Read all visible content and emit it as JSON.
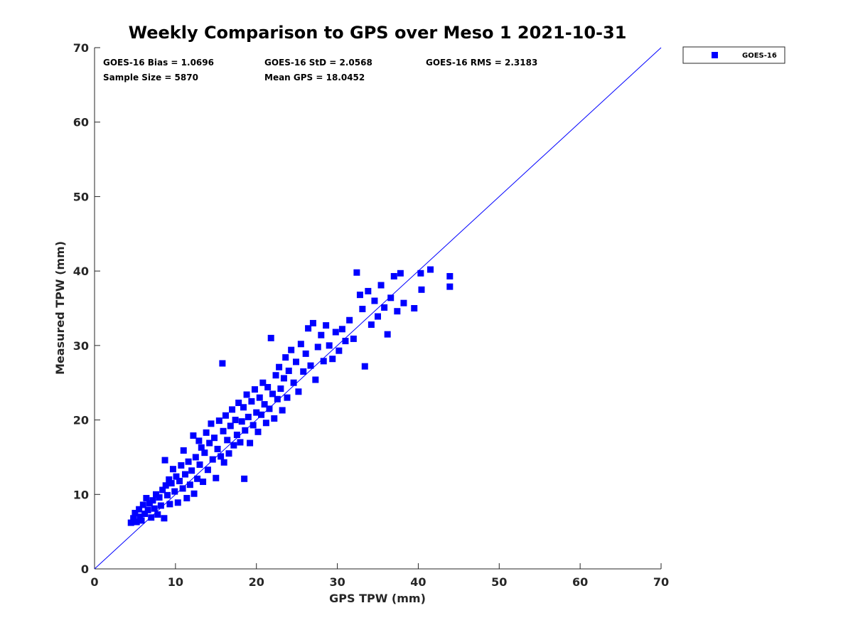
{
  "colors": {
    "series": "#0000ff",
    "axis": "#262626",
    "background": "#ffffff"
  },
  "stats": {
    "bias": "GOES-16 Bias = 1.0696",
    "std": "GOES-16 StD = 2.0568",
    "rms": "GOES-16 RMS = 2.3183",
    "sample_size": "Sample Size = 5870",
    "mean_gps": "Mean GPS = 18.0452"
  },
  "legend": {
    "label": "GOES-16",
    "placement": "top-right, outside plot area"
  },
  "chart_data": {
    "type": "scatter",
    "title": "Weekly Comparison to GPS over Meso 1 2021-10-31",
    "xlabel": "GPS TPW (mm)",
    "ylabel": "Measured TPW (mm)",
    "xlim": [
      0,
      70
    ],
    "ylim": [
      0,
      70
    ],
    "xticks": [
      0,
      10,
      20,
      30,
      40,
      50,
      60,
      70
    ],
    "yticks": [
      0,
      10,
      20,
      30,
      40,
      50,
      60,
      70
    ],
    "grid": false,
    "reference_line": {
      "name": "1:1 line",
      "from": [
        0,
        0
      ],
      "to": [
        70,
        70
      ]
    },
    "series": [
      {
        "name": "GOES-16",
        "marker": "square",
        "points": [
          [
            4.5,
            6.2
          ],
          [
            4.8,
            6.8
          ],
          [
            5.0,
            7.5
          ],
          [
            5.2,
            6.3
          ],
          [
            5.5,
            8.0
          ],
          [
            5.6,
            7.0
          ],
          [
            5.8,
            6.5
          ],
          [
            6.0,
            8.6
          ],
          [
            6.2,
            7.4
          ],
          [
            6.4,
            9.5
          ],
          [
            6.6,
            7.9
          ],
          [
            6.8,
            8.8
          ],
          [
            7.0,
            6.9
          ],
          [
            7.2,
            9.2
          ],
          [
            7.4,
            8.1
          ],
          [
            7.6,
            10.0
          ],
          [
            7.8,
            7.3
          ],
          [
            8.0,
            9.6
          ],
          [
            8.2,
            8.5
          ],
          [
            8.4,
            10.6
          ],
          [
            8.6,
            6.8
          ],
          [
            8.7,
            14.6
          ],
          [
            8.8,
            11.2
          ],
          [
            9.0,
            9.9
          ],
          [
            9.2,
            12.0
          ],
          [
            9.3,
            8.7
          ],
          [
            9.5,
            11.5
          ],
          [
            9.7,
            13.4
          ],
          [
            9.9,
            10.4
          ],
          [
            10.1,
            12.4
          ],
          [
            10.3,
            8.9
          ],
          [
            10.5,
            11.8
          ],
          [
            10.7,
            13.9
          ],
          [
            10.9,
            10.8
          ],
          [
            11.0,
            15.9
          ],
          [
            11.2,
            12.7
          ],
          [
            11.4,
            9.5
          ],
          [
            11.6,
            14.4
          ],
          [
            11.8,
            11.3
          ],
          [
            12.0,
            13.2
          ],
          [
            12.2,
            17.9
          ],
          [
            12.3,
            10.1
          ],
          [
            12.5,
            15.0
          ],
          [
            12.7,
            12.1
          ],
          [
            12.9,
            17.2
          ],
          [
            13.0,
            14.0
          ],
          [
            13.2,
            16.3
          ],
          [
            13.4,
            11.7
          ],
          [
            13.6,
            15.6
          ],
          [
            13.8,
            18.3
          ],
          [
            14.0,
            13.3
          ],
          [
            14.2,
            16.9
          ],
          [
            14.4,
            19.5
          ],
          [
            14.6,
            14.7
          ],
          [
            14.8,
            17.6
          ],
          [
            15.0,
            12.2
          ],
          [
            15.2,
            16.1
          ],
          [
            15.4,
            19.9
          ],
          [
            15.6,
            15.1
          ],
          [
            15.8,
            27.6
          ],
          [
            15.9,
            18.5
          ],
          [
            16.0,
            14.3
          ],
          [
            16.2,
            20.6
          ],
          [
            16.4,
            17.3
          ],
          [
            16.6,
            15.5
          ],
          [
            16.8,
            19.2
          ],
          [
            17.0,
            21.4
          ],
          [
            17.2,
            16.6
          ],
          [
            17.4,
            20.0
          ],
          [
            17.6,
            18.0
          ],
          [
            17.8,
            22.3
          ],
          [
            18.0,
            17.0
          ],
          [
            18.2,
            19.8
          ],
          [
            18.4,
            21.7
          ],
          [
            18.5,
            12.1
          ],
          [
            18.6,
            18.6
          ],
          [
            18.8,
            23.4
          ],
          [
            19.0,
            20.4
          ],
          [
            19.2,
            16.9
          ],
          [
            19.4,
            22.5
          ],
          [
            19.6,
            19.3
          ],
          [
            19.8,
            24.1
          ],
          [
            20.0,
            21.0
          ],
          [
            20.2,
            18.4
          ],
          [
            20.4,
            23.0
          ],
          [
            20.6,
            20.7
          ],
          [
            20.8,
            25.0
          ],
          [
            21.0,
            22.1
          ],
          [
            21.2,
            19.6
          ],
          [
            21.4,
            24.4
          ],
          [
            21.6,
            21.5
          ],
          [
            21.8,
            31.0
          ],
          [
            22.0,
            23.5
          ],
          [
            22.2,
            20.2
          ],
          [
            22.4,
            26.0
          ],
          [
            22.6,
            22.8
          ],
          [
            22.8,
            27.1
          ],
          [
            23.0,
            24.2
          ],
          [
            23.2,
            21.3
          ],
          [
            23.4,
            25.6
          ],
          [
            23.6,
            28.4
          ],
          [
            23.8,
            23.0
          ],
          [
            24.0,
            26.6
          ],
          [
            24.3,
            29.4
          ],
          [
            24.6,
            25.0
          ],
          [
            24.9,
            27.8
          ],
          [
            25.2,
            23.8
          ],
          [
            25.5,
            30.2
          ],
          [
            25.8,
            26.5
          ],
          [
            26.1,
            28.9
          ],
          [
            26.4,
            32.3
          ],
          [
            26.7,
            27.3
          ],
          [
            27.0,
            33.0
          ],
          [
            27.3,
            25.4
          ],
          [
            27.6,
            29.8
          ],
          [
            28.0,
            31.4
          ],
          [
            28.3,
            27.9
          ],
          [
            28.6,
            32.7
          ],
          [
            29.0,
            30.0
          ],
          [
            29.4,
            28.2
          ],
          [
            29.8,
            31.8
          ],
          [
            30.2,
            29.3
          ],
          [
            30.6,
            32.2
          ],
          [
            31.0,
            30.6
          ],
          [
            31.5,
            33.4
          ],
          [
            32.0,
            30.9
          ],
          [
            32.4,
            39.8
          ],
          [
            32.8,
            36.8
          ],
          [
            33.1,
            34.9
          ],
          [
            33.4,
            27.2
          ],
          [
            33.8,
            37.3
          ],
          [
            34.2,
            32.8
          ],
          [
            34.6,
            36.0
          ],
          [
            35.0,
            33.9
          ],
          [
            35.4,
            38.1
          ],
          [
            35.8,
            35.1
          ],
          [
            36.2,
            31.5
          ],
          [
            36.6,
            36.4
          ],
          [
            37.0,
            39.3
          ],
          [
            37.4,
            34.6
          ],
          [
            37.8,
            39.7
          ],
          [
            38.2,
            35.7
          ],
          [
            39.5,
            35.0
          ],
          [
            40.3,
            39.7
          ],
          [
            40.4,
            37.5
          ],
          [
            41.5,
            40.2
          ],
          [
            43.9,
            39.3
          ],
          [
            43.9,
            37.9
          ]
        ]
      }
    ]
  }
}
